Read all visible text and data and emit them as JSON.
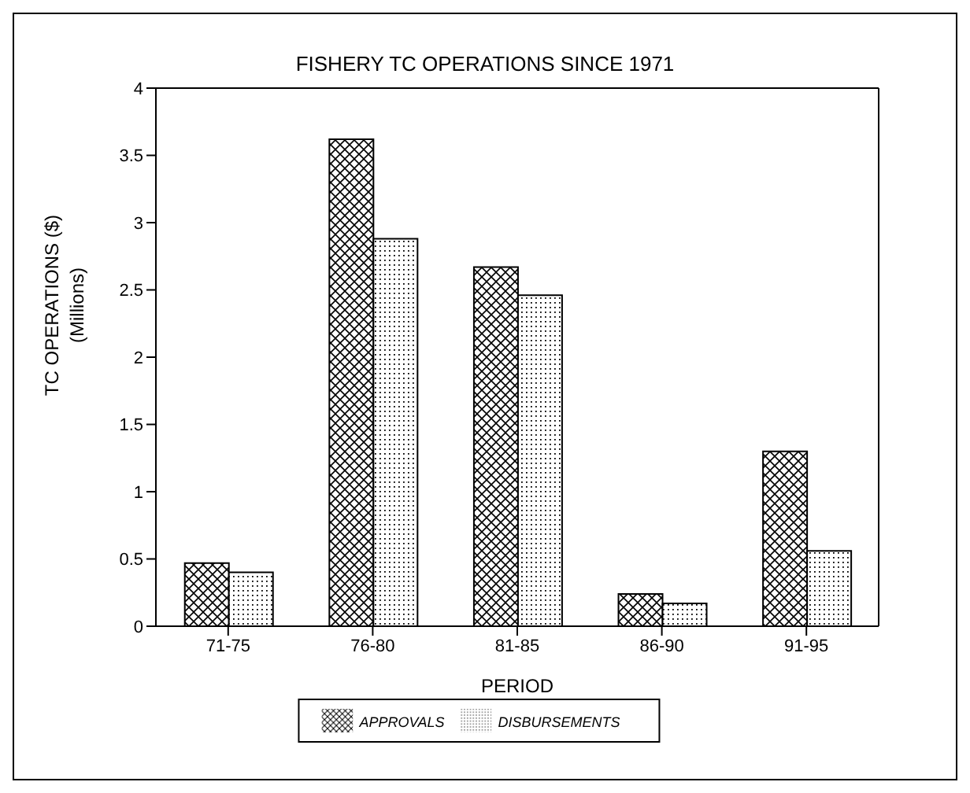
{
  "chart_data": {
    "type": "bar",
    "title": "FISHERY TC OPERATIONS SINCE 1971",
    "xlabel": "PERIOD",
    "ylabel": "TC OPERATIONS ($)\n(Millions)",
    "categories": [
      "71-75",
      "76-80",
      "81-85",
      "86-90",
      "91-95"
    ],
    "series": [
      {
        "name": "APPROVALS",
        "color": "#000000",
        "values": [
          0.47,
          3.62,
          2.67,
          0.24,
          1.3
        ]
      },
      {
        "name": "DISBURSEMENTS",
        "color": "#000000",
        "values": [
          0.4,
          2.88,
          2.46,
          0.17,
          0.56
        ]
      }
    ],
    "ylim": [
      0,
      4
    ],
    "yticks": [
      0,
      0.5,
      1,
      1.5,
      2,
      2.5,
      3,
      3.5,
      4
    ],
    "grid": false,
    "legend": "bottom"
  }
}
